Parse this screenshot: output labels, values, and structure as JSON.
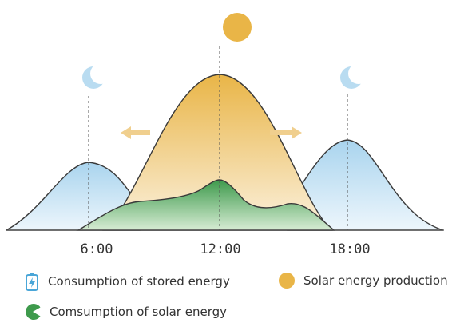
{
  "colors": {
    "solar": "#e9b547",
    "solar_light": "#fbf1de",
    "stored": "#a9d4ee",
    "stored_light": "#edf6fc",
    "solar_use": "#3e9a4c",
    "solar_use_light": "#d7ecd4",
    "moon": "#b9dcf1",
    "arrow": "#f0cf8e",
    "outline": "#3a3a3a",
    "axis": "#555555"
  },
  "icons": {
    "sun": "sun-icon",
    "moon": "moon-icon",
    "battery": "battery-icon",
    "pacman": "pacman-icon"
  },
  "time_labels": [
    "6:00",
    "12:00",
    "18:00"
  ],
  "legend": {
    "stored": "Consumption of stored energy",
    "production": "Solar energy production",
    "solar_use": "Comsumption of solar energy"
  }
}
